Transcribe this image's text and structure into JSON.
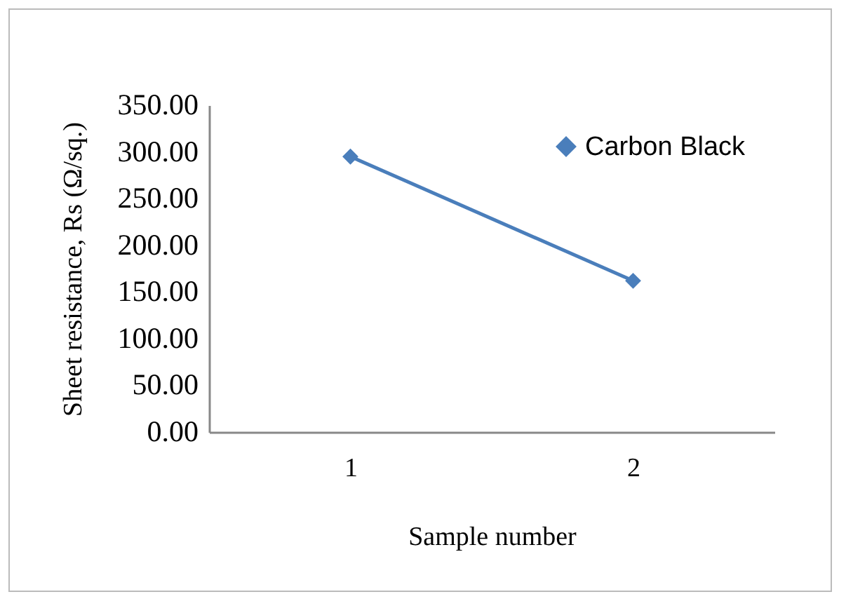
{
  "chart_data": {
    "type": "line",
    "xlabel": "Sample number",
    "ylabel": "Sheet resistance, Rs (Ω/sq.)",
    "categories": [
      "1",
      "2"
    ],
    "series": [
      {
        "name": "Carbon Black",
        "color": "#4a7ebb",
        "values": [
          295,
          162
        ]
      }
    ],
    "ylim": [
      0,
      350
    ],
    "yticks": [
      {
        "value": 0,
        "label": "0.00"
      },
      {
        "value": 50,
        "label": "50.00"
      },
      {
        "value": 100,
        "label": "100.00"
      },
      {
        "value": 150,
        "label": "150.00"
      },
      {
        "value": 200,
        "label": "200.00"
      },
      {
        "value": 250,
        "label": "250.00"
      },
      {
        "value": 300,
        "label": "300.00"
      },
      {
        "value": 350,
        "label": "350.00"
      }
    ],
    "grid": false,
    "legend": "top right",
    "marker": "diamond",
    "line_style": "solid"
  }
}
